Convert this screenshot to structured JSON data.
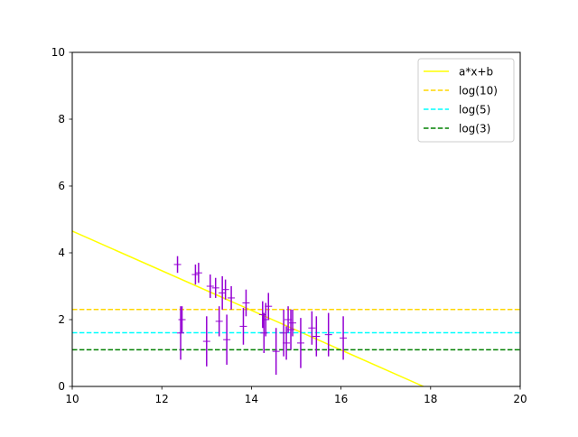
{
  "chart_data": {
    "type": "scatter",
    "title": "",
    "xlabel": "",
    "ylabel": "",
    "xlim": [
      10,
      20
    ],
    "ylim": [
      0,
      10
    ],
    "xticks": [
      "10",
      "12",
      "14",
      "16",
      "18",
      "20"
    ],
    "yticks": [
      "0",
      "2",
      "4",
      "6",
      "8",
      "10"
    ],
    "grid": false,
    "legend_position": "top-right",
    "points": {
      "color": "#9400d3",
      "data": [
        {
          "x": 12.35,
          "y": 3.65,
          "err": 0.25
        },
        {
          "x": 12.42,
          "y": 1.6,
          "err": 0.8
        },
        {
          "x": 12.45,
          "y": 2.0,
          "err": 0.4
        },
        {
          "x": 12.75,
          "y": 3.35,
          "err": 0.3
        },
        {
          "x": 12.82,
          "y": 3.4,
          "err": 0.3
        },
        {
          "x": 13.0,
          "y": 1.35,
          "err": 0.75
        },
        {
          "x": 13.08,
          "y": 3.0,
          "err": 0.35
        },
        {
          "x": 13.2,
          "y": 2.95,
          "err": 0.3
        },
        {
          "x": 13.28,
          "y": 1.95,
          "err": 0.45
        },
        {
          "x": 13.35,
          "y": 2.8,
          "err": 0.5
        },
        {
          "x": 13.42,
          "y": 2.9,
          "err": 0.3
        },
        {
          "x": 13.45,
          "y": 1.4,
          "err": 0.75
        },
        {
          "x": 13.55,
          "y": 2.65,
          "err": 0.35
        },
        {
          "x": 13.82,
          "y": 1.8,
          "err": 0.55
        },
        {
          "x": 13.88,
          "y": 2.5,
          "err": 0.4
        },
        {
          "x": 14.25,
          "y": 2.15,
          "err": 0.4
        },
        {
          "x": 14.28,
          "y": 1.6,
          "err": 0.6
        },
        {
          "x": 14.32,
          "y": 2.0,
          "err": 0.5
        },
        {
          "x": 14.38,
          "y": 2.4,
          "err": 0.4
        },
        {
          "x": 14.55,
          "y": 1.05,
          "err": 0.7
        },
        {
          "x": 14.72,
          "y": 1.6,
          "err": 0.7
        },
        {
          "x": 14.78,
          "y": 1.3,
          "err": 0.5
        },
        {
          "x": 14.82,
          "y": 2.0,
          "err": 0.4
        },
        {
          "x": 14.88,
          "y": 1.7,
          "err": 0.6
        },
        {
          "x": 14.92,
          "y": 1.9,
          "err": 0.4
        },
        {
          "x": 15.1,
          "y": 1.3,
          "err": 0.75
        },
        {
          "x": 15.35,
          "y": 1.75,
          "err": 0.5
        },
        {
          "x": 15.45,
          "y": 1.5,
          "err": 0.6
        },
        {
          "x": 15.72,
          "y": 1.55,
          "err": 0.65
        },
        {
          "x": 16.05,
          "y": 1.45,
          "err": 0.65
        }
      ]
    },
    "series": [
      {
        "name": "a*x+b",
        "kind": "line",
        "color": "#ffff00",
        "dash": "solid",
        "x": [
          10,
          17.84
        ],
        "y": [
          4.65,
          0
        ]
      },
      {
        "name": "log(10)",
        "kind": "hline",
        "color": "#ffd700",
        "dash": "dashed",
        "y": 2.302585
      },
      {
        "name": "log(5)",
        "kind": "hline",
        "color": "#00ffff",
        "dash": "dashed",
        "y": 1.609438
      },
      {
        "name": "log(3)",
        "kind": "hline",
        "color": "#008000",
        "dash": "dashed",
        "y": 1.098612
      }
    ]
  }
}
